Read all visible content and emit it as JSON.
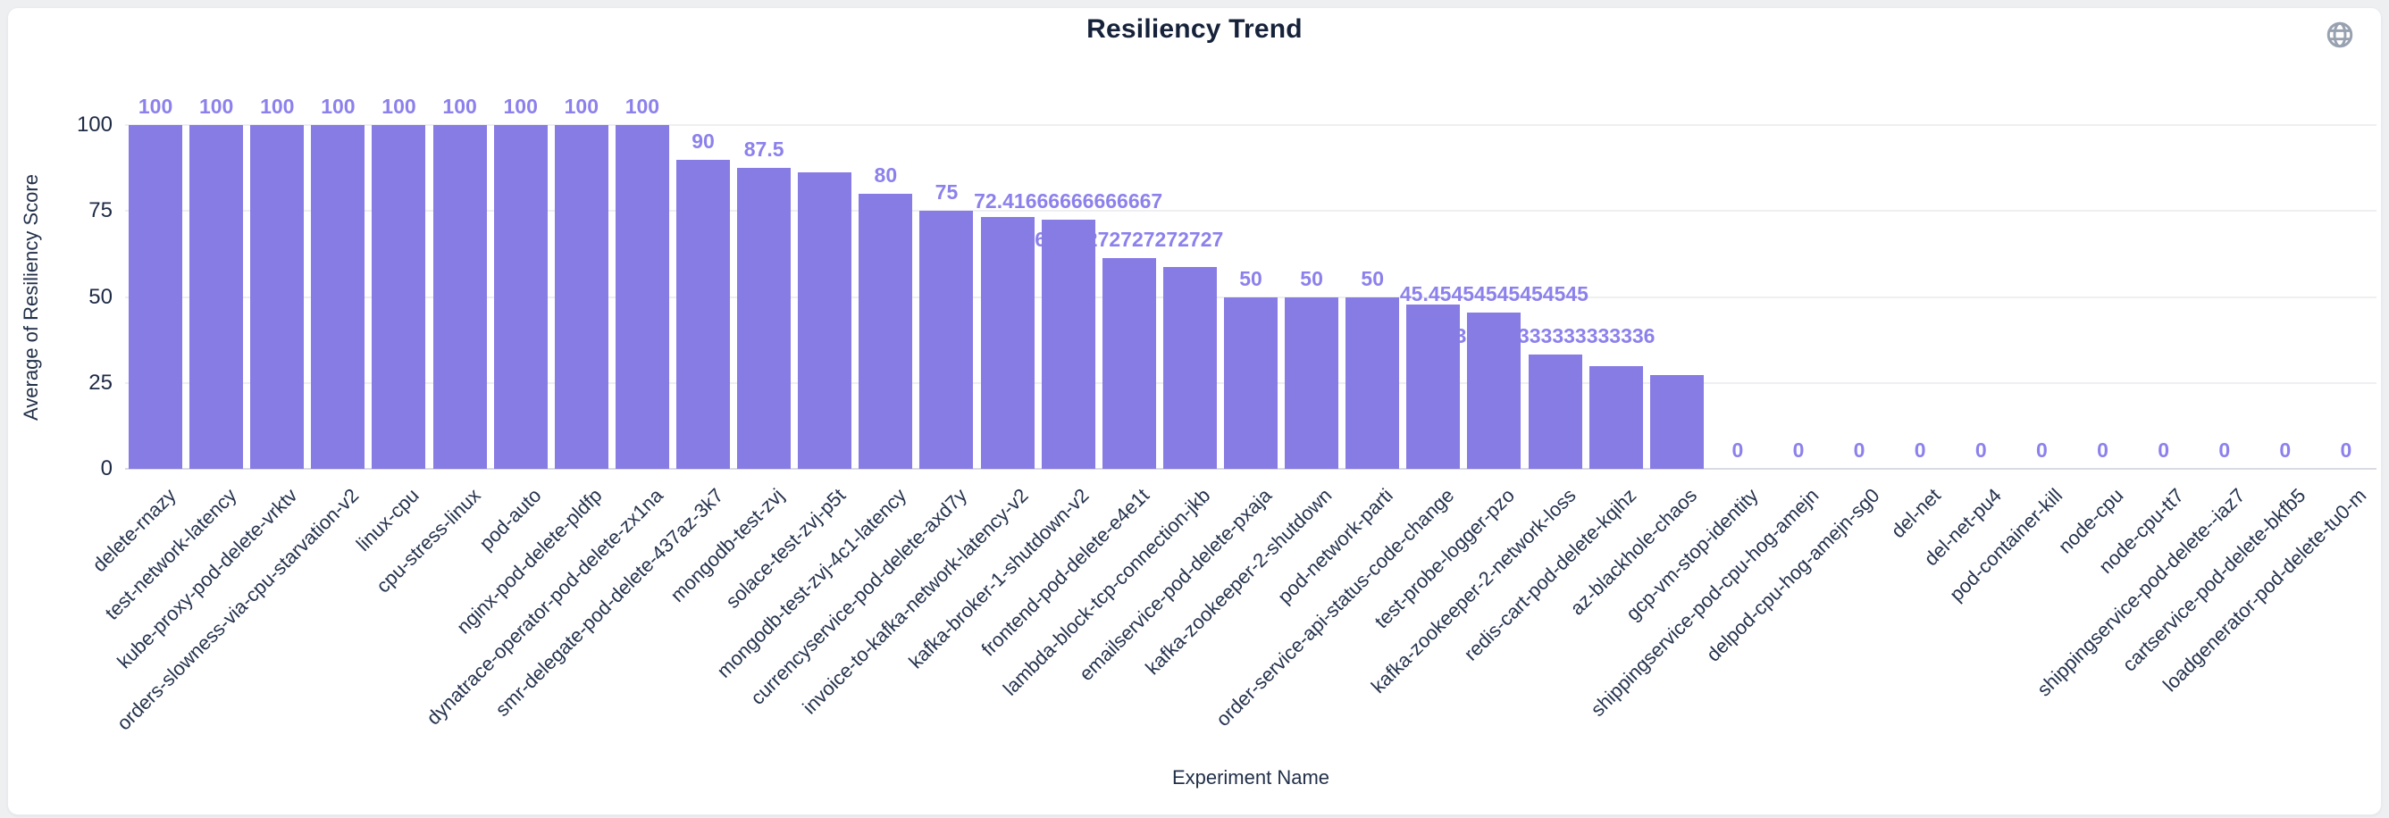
{
  "header": {
    "title": "Resiliency Trend"
  },
  "icons": {
    "globe_icon": "globe-icon",
    "globe_color": "#98a1b0"
  },
  "colors": {
    "bar": "#877be4",
    "value_label": "#8c81ec",
    "axis_text": "#1d2a44",
    "title_text": "#16223a",
    "card_bg": "#ffffff",
    "page_bg": "#edeff1",
    "gridline": "#efeff2",
    "axis_line": "#d8dbe2"
  },
  "chart_data": {
    "type": "bar",
    "title": "Resiliency Trend",
    "xlabel": "Experiment Name",
    "ylabel": "Average of Resiliency Score",
    "ylim": [
      0,
      100
    ],
    "y_ticks": [
      "0",
      "25",
      "50",
      "75",
      "100"
    ],
    "grid": true,
    "legend": "none",
    "categories": [
      "delete-rnazy",
      "test-network-latency",
      "kube-proxy-pod-delete-vrktv",
      "orders-slowness-via-cpu-starvation-v2",
      "linux-cpu",
      "cpu-stress-linux",
      "pod-auto",
      "nginx-pod-delete-pldfp",
      "dynatrace-operator-pod-delete-zx1na",
      "smr-delegate-pod-delete-437az-3k7",
      "mongodb-test-zvj",
      "solace-test-zvj-p5t",
      "mongodb-test-zvj-4c1-latency",
      "currencyservice-pod-delete-axd7y",
      "invoice-to-kafka-network-latency-v2",
      "kafka-broker-1-shutdown-v2",
      "frontend-pod-delete-e4e1t",
      "lambda-block-tcp-connection-jkb",
      "emailservice-pod-delete-pxaja",
      "kafka-zookeeper-2-shutdown",
      "pod-network-parti",
      "order-service-api-status-code-change",
      "test-probe-logger-pzo",
      "kafka-zookeeper-2-network-loss",
      "redis-cart-pod-delete-kqihz",
      "az-blackhole-chaos",
      "gcp-vm-stop-identity",
      "shippingservice-pod-cpu-hog-amejn",
      "delpod-cpu-hog-amejn-sg0",
      "del-net",
      "del-net-pu4",
      "pod-container-kill",
      "node-cpu",
      "node-cpu-tt7",
      "shippingservice-pod-delete--iaz7",
      "cartservice-pod-delete-bkfb5",
      "loadgenerator-pod-delete-tu0-m"
    ],
    "values": [
      100,
      100,
      100,
      100,
      100,
      100,
      100,
      100,
      100,
      90,
      87.5,
      86.2,
      80,
      75,
      73.3,
      72.41666666666667,
      61.27272727272727,
      58.6,
      50,
      50,
      50,
      47.9,
      45.45454545454545,
      33.333333333333336,
      30,
      27.3,
      0,
      0,
      0,
      0,
      0,
      0,
      0,
      0,
      0,
      0,
      0
    ],
    "value_labels": [
      "100",
      "100",
      "100",
      "100",
      "100",
      "100",
      "100",
      "100",
      "100",
      "90",
      "87.5",
      null,
      "80",
      "75",
      null,
      "72.41666666666667",
      "61.27272727272727",
      null,
      "50",
      "50",
      "50",
      null,
      "45.45454545454545",
      "33.333333333333336",
      null,
      null,
      "0",
      "0",
      "0",
      "0",
      "0",
      "0",
      "0",
      "0",
      "0",
      "0",
      "0"
    ]
  }
}
